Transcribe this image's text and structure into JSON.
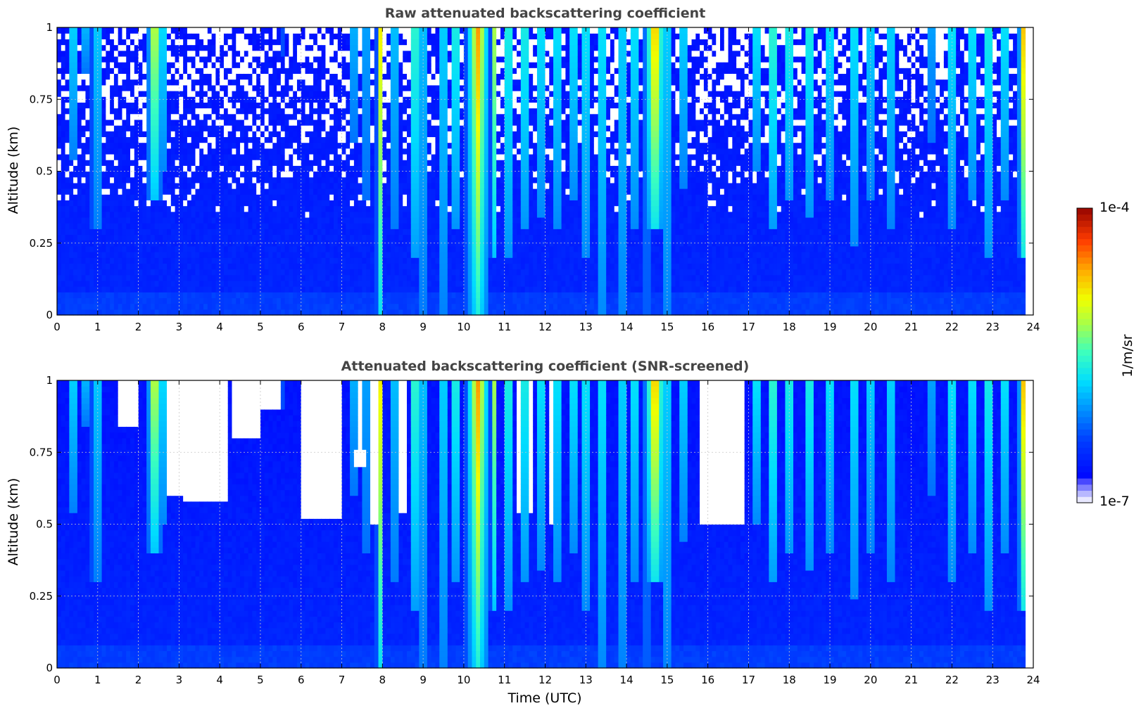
{
  "chart_data": [
    {
      "type": "heatmap",
      "title": "Raw attenuated backscattering coefficient",
      "xlabel": "",
      "ylabel": "Altitude (km)",
      "xlim": [
        0,
        24
      ],
      "ylim": [
        0,
        1
      ],
      "x_ticks": [
        "0",
        "1",
        "2",
        "3",
        "4",
        "5",
        "6",
        "7",
        "8",
        "9",
        "10",
        "11",
        "12",
        "13",
        "14",
        "15",
        "16",
        "17",
        "18",
        "19",
        "20",
        "21",
        "22",
        "23",
        "24"
      ],
      "y_ticks": [
        "0",
        "0.25",
        "0.5",
        "0.75",
        "1"
      ],
      "grid": true,
      "colormap": "jet",
      "color_scale": "log",
      "screened": false,
      "clouds": [
        {
          "t": 0.4,
          "w": 0.1,
          "top": 1.0,
          "base": 0.55,
          "peak": 0.55
        },
        {
          "t": 0.7,
          "w": 0.06,
          "top": 1.0,
          "base": 0.85,
          "peak": 1.0
        },
        {
          "t": 1.0,
          "w": 0.15,
          "top": 1.0,
          "base": 0.3,
          "peak": 0.45
        },
        {
          "t": 2.4,
          "w": 0.18,
          "top": 1.0,
          "base": 0.4,
          "peak": 0.75
        },
        {
          "t": 2.6,
          "w": 0.08,
          "top": 1.0,
          "base": 0.5,
          "peak": 0.7
        },
        {
          "t": 5.6,
          "w": 0.05,
          "top": 1.0,
          "base": 0.9,
          "peak": 0.5
        },
        {
          "t": 7.3,
          "w": 0.08,
          "top": 1.0,
          "base": 0.6,
          "peak": 0.55
        },
        {
          "t": 7.6,
          "w": 0.08,
          "top": 1.0,
          "base": 0.4,
          "peak": 0.5
        },
        {
          "t": 7.95,
          "w": 0.1,
          "top": 1.0,
          "base": 0.0,
          "peak": 0.7
        },
        {
          "t": 8.3,
          "w": 0.08,
          "top": 1.0,
          "base": 0.3,
          "peak": 0.6
        },
        {
          "t": 8.8,
          "w": 0.12,
          "top": 1.0,
          "base": 0.2,
          "peak": 0.65
        },
        {
          "t": 9.0,
          "w": 0.08,
          "top": 1.0,
          "base": 0.0,
          "peak": 0.6
        },
        {
          "t": 9.5,
          "w": 0.1,
          "top": 1.0,
          "base": 0.0,
          "peak": 0.55
        },
        {
          "t": 9.8,
          "w": 0.12,
          "top": 1.0,
          "base": 0.3,
          "peak": 0.6
        },
        {
          "t": 10.35,
          "w": 0.3,
          "top": 1.0,
          "base": 0.0,
          "peak": 0.8
        },
        {
          "t": 10.75,
          "w": 0.1,
          "top": 1.0,
          "base": 0.2,
          "peak": 0.6
        },
        {
          "t": 11.1,
          "w": 0.12,
          "top": 1.0,
          "base": 0.2,
          "peak": 0.6
        },
        {
          "t": 11.5,
          "w": 0.12,
          "top": 1.0,
          "base": 0.3,
          "peak": 0.6
        },
        {
          "t": 11.9,
          "w": 0.1,
          "top": 1.0,
          "base": 0.35,
          "peak": 0.6
        },
        {
          "t": 12.3,
          "w": 0.1,
          "top": 1.0,
          "base": 0.3,
          "peak": 0.6
        },
        {
          "t": 12.7,
          "w": 0.1,
          "top": 1.0,
          "base": 0.4,
          "peak": 0.6
        },
        {
          "t": 13.0,
          "w": 0.1,
          "top": 1.0,
          "base": 0.2,
          "peak": 0.6
        },
        {
          "t": 13.4,
          "w": 0.1,
          "top": 1.0,
          "base": 0.0,
          "peak": 0.6
        },
        {
          "t": 13.9,
          "w": 0.1,
          "top": 1.0,
          "base": 0.0,
          "peak": 0.55
        },
        {
          "t": 14.2,
          "w": 0.1,
          "top": 1.0,
          "base": 0.3,
          "peak": 0.6
        },
        {
          "t": 14.5,
          "w": 0.06,
          "top": 1.0,
          "base": 0.0,
          "peak": 0.5
        },
        {
          "t": 14.7,
          "w": 0.25,
          "top": 1.0,
          "base": 0.3,
          "peak": 0.85
        },
        {
          "t": 15.0,
          "w": 0.1,
          "top": 1.0,
          "base": 0.0,
          "peak": 0.55
        },
        {
          "t": 15.4,
          "w": 0.1,
          "top": 1.0,
          "base": 0.45,
          "peak": 0.55
        },
        {
          "t": 17.2,
          "w": 0.1,
          "top": 1.0,
          "base": 0.5,
          "peak": 0.6
        },
        {
          "t": 17.6,
          "w": 0.12,
          "top": 1.0,
          "base": 0.3,
          "peak": 0.65
        },
        {
          "t": 18.0,
          "w": 0.12,
          "top": 1.0,
          "base": 0.4,
          "peak": 0.6
        },
        {
          "t": 18.5,
          "w": 0.12,
          "top": 1.0,
          "base": 0.35,
          "peak": 0.6
        },
        {
          "t": 19.0,
          "w": 0.1,
          "top": 1.0,
          "base": 0.4,
          "peak": 0.6
        },
        {
          "t": 19.6,
          "w": 0.1,
          "top": 1.0,
          "base": 0.25,
          "peak": 0.6
        },
        {
          "t": 20.0,
          "w": 0.1,
          "top": 1.0,
          "base": 0.4,
          "peak": 0.55
        },
        {
          "t": 20.5,
          "w": 0.1,
          "top": 1.0,
          "base": 0.3,
          "peak": 0.55
        },
        {
          "t": 21.5,
          "w": 0.08,
          "top": 1.0,
          "base": 0.6,
          "peak": 0.5
        },
        {
          "t": 22.0,
          "w": 0.1,
          "top": 1.0,
          "base": 0.3,
          "peak": 0.6
        },
        {
          "t": 22.5,
          "w": 0.1,
          "top": 1.0,
          "base": 0.4,
          "peak": 0.6
        },
        {
          "t": 22.9,
          "w": 0.1,
          "top": 1.0,
          "base": 0.2,
          "peak": 0.65
        },
        {
          "t": 23.3,
          "w": 0.1,
          "top": 1.0,
          "base": 0.4,
          "peak": 0.6
        },
        {
          "t": 23.75,
          "w": 0.12,
          "top": 1.0,
          "base": 0.2,
          "peak": 0.75
        }
      ],
      "screened_gaps": [],
      "data_end_time": 23.8
    },
    {
      "type": "heatmap",
      "title": "Attenuated backscattering coefficient (SNR-screened)",
      "xlabel": "Time (UTC)",
      "ylabel": "Altitude (km)",
      "xlim": [
        0,
        24
      ],
      "ylim": [
        0,
        1
      ],
      "x_ticks": [
        "0",
        "1",
        "2",
        "3",
        "4",
        "5",
        "6",
        "7",
        "8",
        "9",
        "10",
        "11",
        "12",
        "13",
        "14",
        "15",
        "16",
        "17",
        "18",
        "19",
        "20",
        "21",
        "22",
        "23",
        "24"
      ],
      "y_ticks": [
        "0",
        "0.25",
        "0.5",
        "0.75",
        "1"
      ],
      "grid": true,
      "colormap": "jet",
      "color_scale": "log",
      "screened": true,
      "screened_gaps": [
        {
          "t0": 1.5,
          "t1": 2.0,
          "bottom": 0.85
        },
        {
          "t0": 2.75,
          "t1": 3.1,
          "bottom": 0.6
        },
        {
          "t0": 3.1,
          "t1": 4.2,
          "bottom": 0.58
        },
        {
          "t0": 4.3,
          "t1": 5.0,
          "bottom": 0.8
        },
        {
          "t0": 5.0,
          "t1": 5.5,
          "bottom": 0.9
        },
        {
          "t0": 6.0,
          "t1": 7.0,
          "bottom": 0.52
        },
        {
          "t0": 7.3,
          "t1": 7.6,
          "bottom": 0.7
        },
        {
          "t0": 7.7,
          "t1": 7.9,
          "bottom": 0.5
        },
        {
          "t0": 8.3,
          "t1": 8.6,
          "bottom": 0.55
        },
        {
          "t0": 11.3,
          "t1": 11.7,
          "bottom": 0.55
        },
        {
          "t0": 12.1,
          "t1": 12.3,
          "bottom": 0.5
        },
        {
          "t0": 15.8,
          "t1": 16.9,
          "bottom": 0.5
        }
      ],
      "data_end_time": 23.8
    }
  ],
  "colorbar": {
    "label": "1/m/sr",
    "max_label": "1e-4",
    "min_label": "1e-7"
  }
}
